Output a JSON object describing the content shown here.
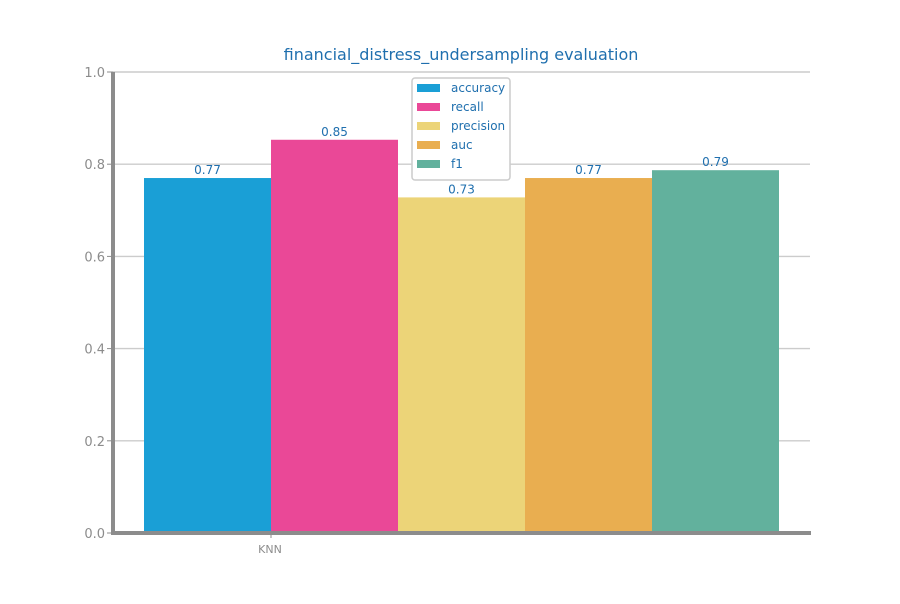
{
  "chart_data": {
    "type": "bar",
    "title": "financial_distress_undersampling evaluation",
    "xlabel": "",
    "ylabel": "",
    "categories": [
      "KNN"
    ],
    "ylim": [
      0,
      1
    ],
    "yticks": [
      "0.0",
      "0.2",
      "0.4",
      "0.6",
      "0.8",
      "1.0"
    ],
    "grid": true,
    "legend_position": "top-center",
    "series": [
      {
        "name": "accuracy",
        "values": [
          0.77
        ],
        "label": "0.77",
        "color": "#1a9fd6"
      },
      {
        "name": "recall",
        "values": [
          0.853
        ],
        "label": "0.85",
        "color": "#ea4897"
      },
      {
        "name": "precision",
        "values": [
          0.728
        ],
        "label": "0.73",
        "color": "#ecd478"
      },
      {
        "name": "auc",
        "values": [
          0.77
        ],
        "label": "0.77",
        "color": "#e9ae50"
      },
      {
        "name": "f1",
        "values": [
          0.787
        ],
        "label": "0.79",
        "color": "#62b19d"
      }
    ],
    "colors": {
      "title": "#1f6fae",
      "label_text": "#1f6fae",
      "tick_text": "#8c8c8c",
      "axis": "#8c8c8c",
      "grid": "#cccccc"
    }
  }
}
